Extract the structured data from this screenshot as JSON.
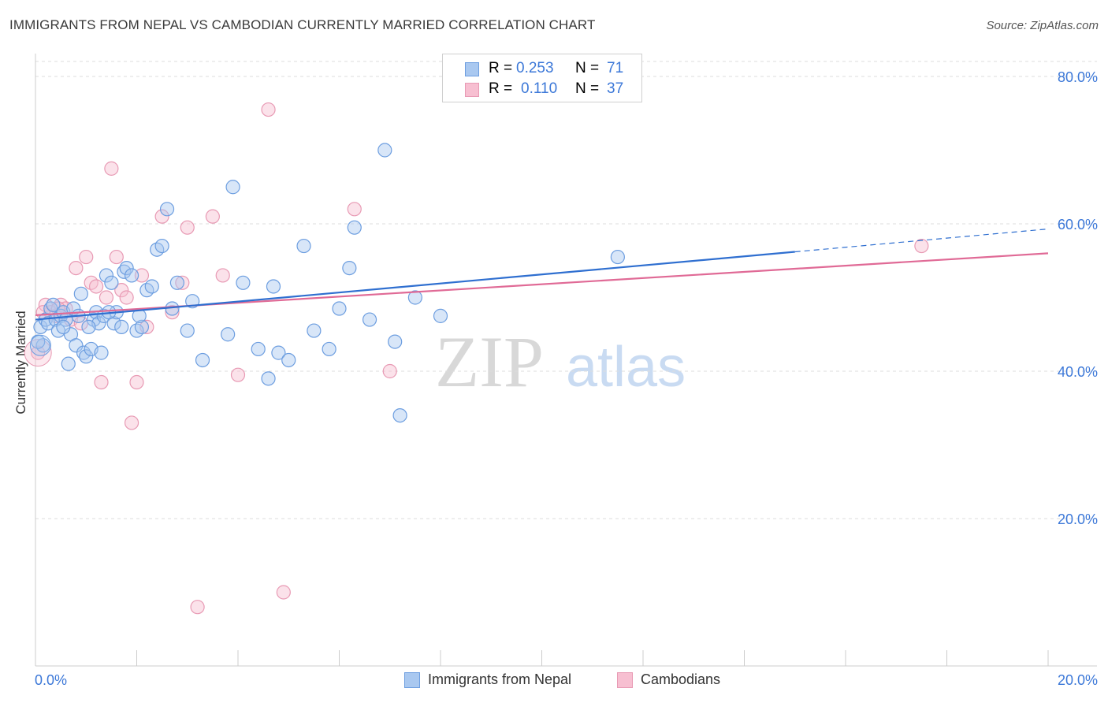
{
  "title": "IMMIGRANTS FROM NEPAL VS CAMBODIAN CURRENTLY MARRIED CORRELATION CHART",
  "source": "Source: ZipAtlas.com",
  "watermark": {
    "zip": "ZIP",
    "atlas": "atlas"
  },
  "legend_top": {
    "rows": [
      {
        "r_label": "R = ",
        "r_value": "0.253",
        "n_label": "N = ",
        "n_value": "71"
      },
      {
        "r_label": "R = ",
        "r_value": "0.110",
        "n_label": "N = ",
        "n_value": "37"
      }
    ]
  },
  "legend_bottom": {
    "series1": "Immigrants from Nepal",
    "series2": "Cambodians"
  },
  "colors": {
    "blue_fill": "#a9c8f0",
    "blue_stroke": "#6d9ee0",
    "blue_line": "#2f6fd0",
    "pink_fill": "#f7bfd1",
    "pink_stroke": "#e89ab4",
    "pink_line": "#e06a96",
    "axis_text": "#3c78d8",
    "grid": "#dddddd"
  },
  "chart_data": {
    "type": "scatter",
    "title": "IMMIGRANTS FROM NEPAL VS CAMBODIAN CURRENTLY MARRIED CORRELATION CHART",
    "xlabel": "",
    "ylabel": "Currently Married",
    "xlim": [
      0,
      20
    ],
    "ylim": [
      0,
      80
    ],
    "x_tick_labels": [
      "0.0%",
      "20.0%"
    ],
    "y_ticks": [
      20,
      40,
      60,
      80
    ],
    "y_tick_labels": [
      "20.0%",
      "40.0%",
      "60.0%",
      "80.0%"
    ],
    "grid": true,
    "series": [
      {
        "name": "Immigrants from Nepal",
        "R": 0.253,
        "N": 71,
        "trend": {
          "x0": 0.0,
          "y0": 47.0,
          "x1": 15.0,
          "y1": 56.2,
          "dashed_to_x": 20.0,
          "dashed_to_y": 59.3
        },
        "points": [
          [
            0.1,
            46.0
          ],
          [
            0.2,
            47.0
          ],
          [
            0.25,
            46.5
          ],
          [
            0.3,
            48.5
          ],
          [
            0.35,
            49.0
          ],
          [
            0.4,
            47.0
          ],
          [
            0.45,
            45.5
          ],
          [
            0.5,
            47.5
          ],
          [
            0.55,
            48.0
          ],
          [
            0.6,
            47.0
          ],
          [
            0.7,
            45.0
          ],
          [
            0.75,
            48.5
          ],
          [
            0.8,
            43.5
          ],
          [
            0.85,
            47.5
          ],
          [
            0.9,
            50.5
          ],
          [
            0.95,
            42.5
          ],
          [
            1.0,
            42.0
          ],
          [
            1.1,
            43.0
          ],
          [
            1.15,
            47.0
          ],
          [
            1.2,
            48.0
          ],
          [
            1.25,
            46.5
          ],
          [
            1.3,
            42.5
          ],
          [
            1.35,
            47.5
          ],
          [
            1.4,
            53.0
          ],
          [
            1.5,
            52.0
          ],
          [
            1.55,
            46.5
          ],
          [
            1.6,
            48.0
          ],
          [
            1.7,
            46.0
          ],
          [
            1.75,
            53.5
          ],
          [
            1.8,
            54.0
          ],
          [
            1.9,
            53.0
          ],
          [
            2.0,
            45.5
          ],
          [
            2.1,
            46.0
          ],
          [
            2.2,
            51.0
          ],
          [
            2.3,
            51.5
          ],
          [
            2.4,
            56.5
          ],
          [
            2.5,
            57.0
          ],
          [
            2.6,
            62.0
          ],
          [
            2.7,
            48.5
          ],
          [
            2.8,
            52.0
          ],
          [
            3.0,
            45.5
          ],
          [
            3.1,
            49.5
          ],
          [
            3.3,
            41.5
          ],
          [
            3.8,
            45.0
          ],
          [
            3.9,
            65.0
          ],
          [
            4.1,
            52.0
          ],
          [
            4.4,
            43.0
          ],
          [
            4.6,
            39.0
          ],
          [
            4.7,
            51.5
          ],
          [
            4.8,
            42.5
          ],
          [
            5.0,
            41.5
          ],
          [
            5.3,
            57.0
          ],
          [
            5.5,
            45.5
          ],
          [
            5.8,
            43.0
          ],
          [
            6.0,
            48.5
          ],
          [
            6.2,
            54.0
          ],
          [
            6.3,
            59.5
          ],
          [
            6.6,
            47.0
          ],
          [
            6.9,
            70.0
          ],
          [
            7.1,
            44.0
          ],
          [
            7.2,
            34.0
          ],
          [
            7.5,
            50.0
          ],
          [
            8.0,
            47.5
          ],
          [
            11.5,
            55.5
          ],
          [
            0.15,
            43.5
          ],
          [
            0.65,
            41.0
          ],
          [
            0.05,
            44.0
          ],
          [
            1.45,
            48.0
          ],
          [
            2.05,
            47.5
          ],
          [
            0.55,
            46.0
          ],
          [
            1.05,
            46.0
          ]
        ]
      },
      {
        "name": "Cambodians",
        "R": 0.11,
        "N": 37,
        "trend": {
          "x0": 0.0,
          "y0": 47.6,
          "x1": 20.0,
          "y1": 56.0
        },
        "points": [
          [
            0.05,
            42.5
          ],
          [
            0.2,
            49.0
          ],
          [
            0.3,
            48.0
          ],
          [
            0.4,
            47.5
          ],
          [
            0.5,
            49.0
          ],
          [
            0.6,
            48.5
          ],
          [
            0.7,
            47.0
          ],
          [
            0.8,
            54.0
          ],
          [
            0.9,
            46.5
          ],
          [
            1.0,
            55.5
          ],
          [
            1.1,
            52.0
          ],
          [
            1.2,
            51.5
          ],
          [
            1.3,
            38.5
          ],
          [
            1.4,
            50.0
          ],
          [
            1.5,
            67.5
          ],
          [
            1.6,
            55.5
          ],
          [
            1.7,
            51.0
          ],
          [
            1.8,
            50.0
          ],
          [
            1.9,
            33.0
          ],
          [
            2.0,
            38.5
          ],
          [
            2.1,
            53.0
          ],
          [
            2.2,
            46.0
          ],
          [
            2.5,
            61.0
          ],
          [
            2.7,
            48.0
          ],
          [
            2.9,
            52.0
          ],
          [
            3.0,
            59.5
          ],
          [
            3.2,
            8.0
          ],
          [
            3.5,
            61.0
          ],
          [
            3.7,
            53.0
          ],
          [
            4.0,
            39.5
          ],
          [
            4.6,
            75.5
          ],
          [
            4.9,
            10.0
          ],
          [
            6.3,
            62.0
          ],
          [
            7.0,
            40.0
          ],
          [
            17.5,
            57.0
          ],
          [
            0.15,
            48.0
          ],
          [
            0.45,
            48.5
          ]
        ]
      }
    ]
  }
}
